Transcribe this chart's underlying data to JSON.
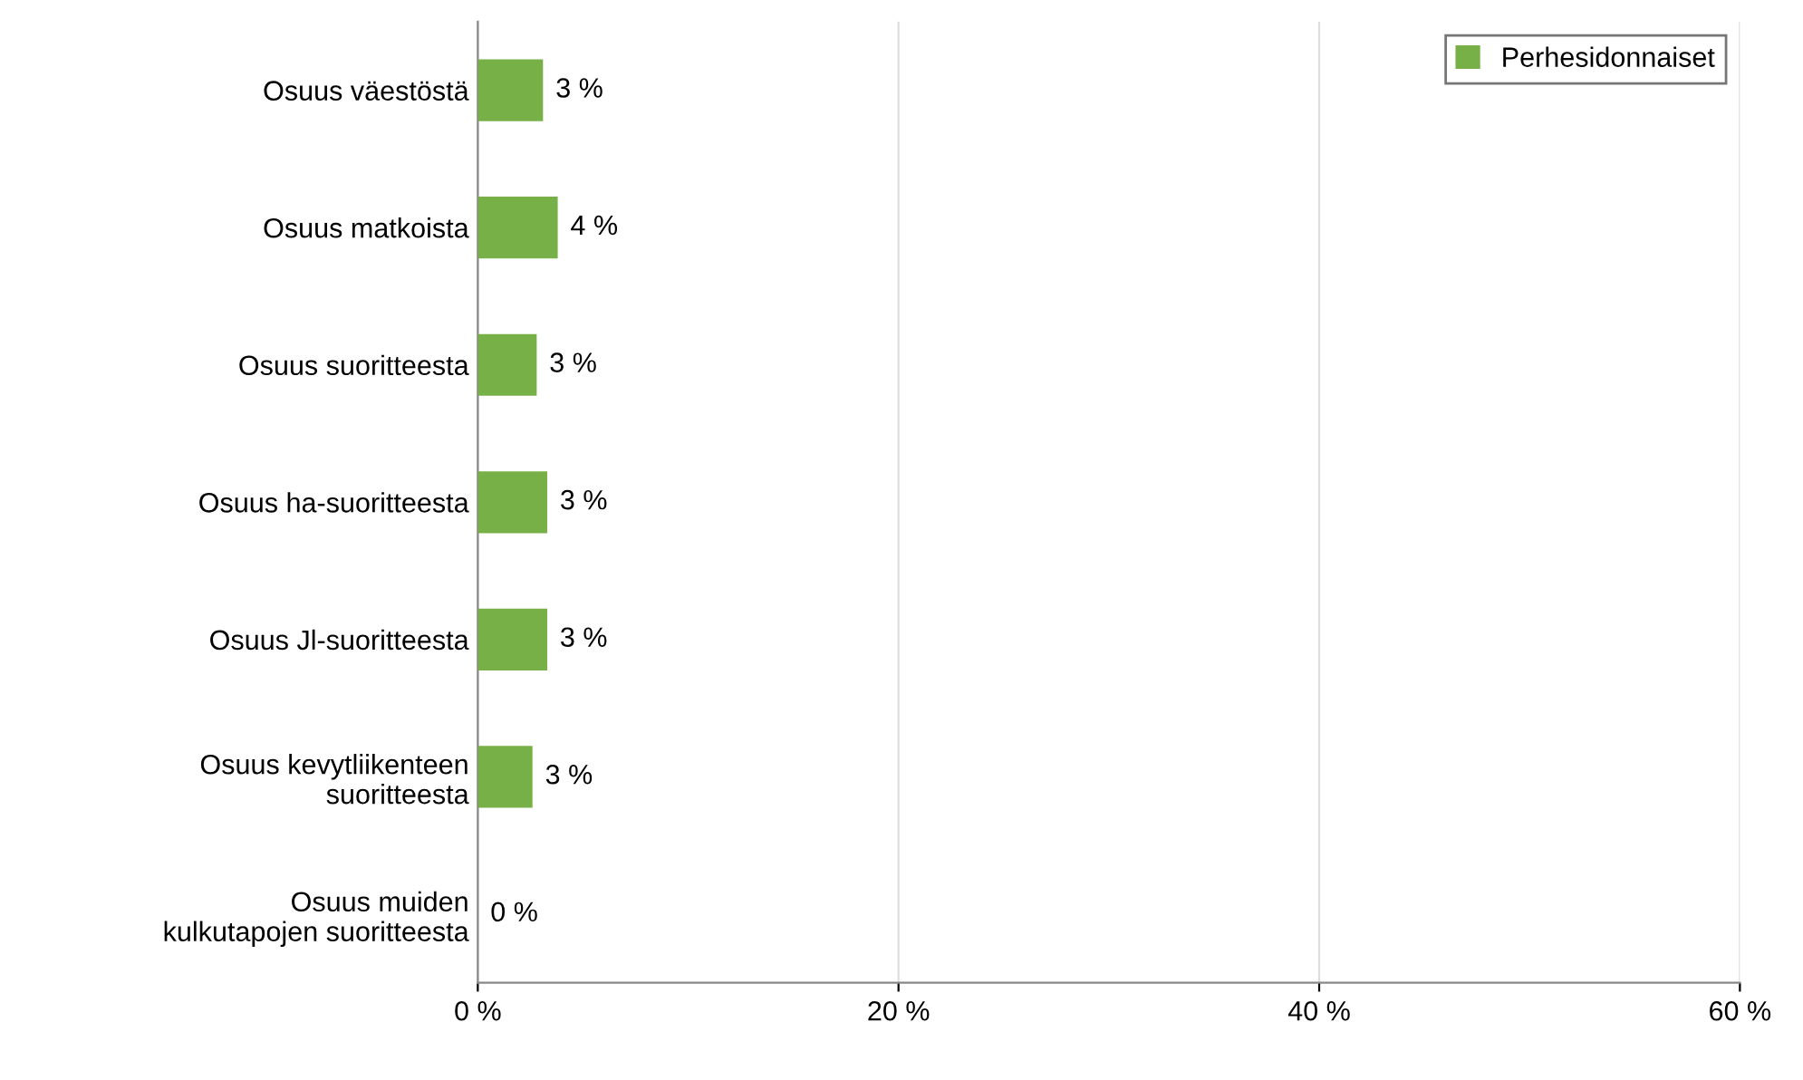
{
  "chart_data": {
    "type": "bar",
    "orientation": "horizontal",
    "categories": [
      "Osuus väestöstä",
      "Osuus matkoista",
      "Osuus suoritteesta",
      "Osuus ha-suoritteesta",
      "Osuus Jl-suoritteesta",
      "Osuus kevytliikenteen\nsuoritteesta",
      "Osuus muiden\nkulkutapojen suoritteesta"
    ],
    "series": [
      {
        "name": "Perhesidonnaiset",
        "color": "#77b046",
        "values": [
          3.1,
          3.8,
          2.8,
          3.3,
          3.3,
          2.6,
          0
        ],
        "value_labels": [
          "3 %",
          "4 %",
          "3 %",
          "3 %",
          "3 %",
          "3 %",
          "0 %"
        ]
      }
    ],
    "xlim": [
      0,
      60
    ],
    "xticks": [
      {
        "value": 0,
        "label": "0 %"
      },
      {
        "value": 20,
        "label": "20 %"
      },
      {
        "value": 40,
        "label": "40 %"
      },
      {
        "value": 60,
        "label": "60 %"
      }
    ],
    "grid": "x",
    "legend": "top right"
  }
}
